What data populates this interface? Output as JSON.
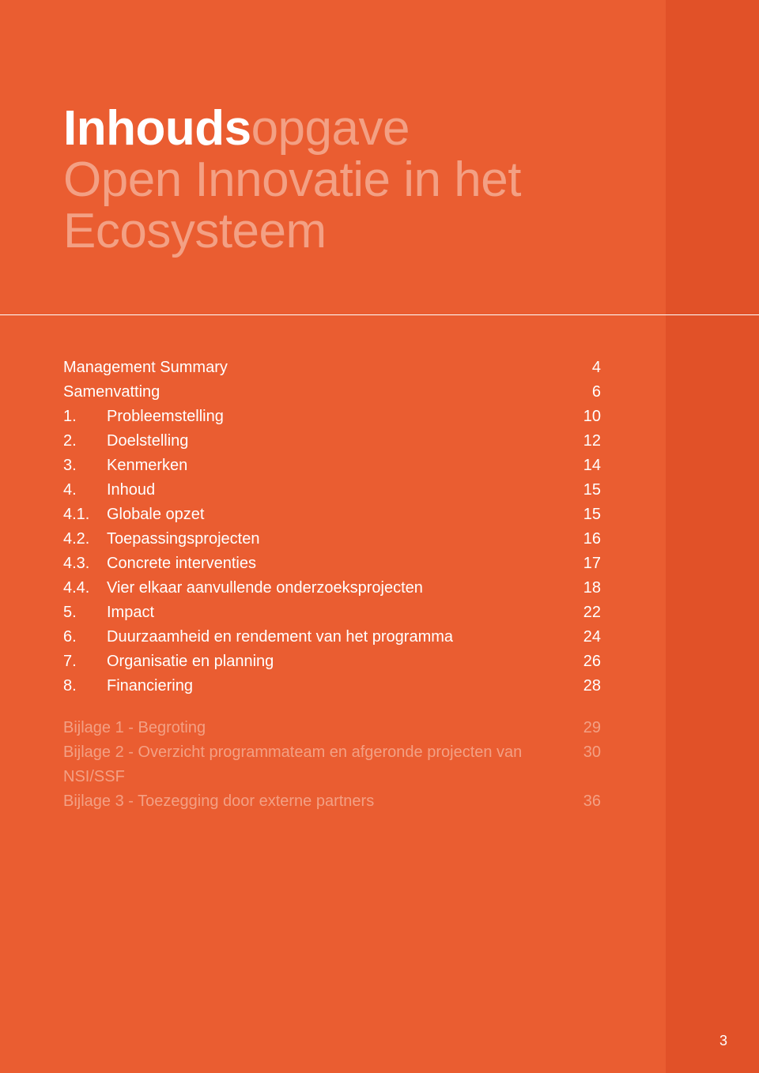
{
  "colors": {
    "page_bg": "#ea5d31",
    "sidebar_bg": "#e15128",
    "rule": "#ffffff",
    "title_bold": "#ffffff",
    "title_light": "#f3a084",
    "toc_main": "#ffffff",
    "toc_appendix": "#f3a084",
    "page_number": "#ffffff"
  },
  "title": {
    "bold": "Inhouds",
    "light": "opgave",
    "subtitle_line1": "Open Innovatie in het",
    "subtitle_line2": "Ecosysteem"
  },
  "toc": {
    "main": [
      {
        "num": "",
        "label": "Management Summary",
        "page": "4"
      },
      {
        "num": "",
        "label": "Samenvatting",
        "page": "6"
      },
      {
        "num": "1.",
        "label": "Probleemstelling",
        "page": "10"
      },
      {
        "num": "2.",
        "label": "Doelstelling",
        "page": "12"
      },
      {
        "num": "3.",
        "label": "Kenmerken",
        "page": "14"
      },
      {
        "num": "4.",
        "label": "Inhoud",
        "page": "15"
      },
      {
        "num": "4.1.",
        "label": "Globale opzet",
        "page": "15"
      },
      {
        "num": "4.2.",
        "label": "Toepassingsprojecten",
        "page": "16"
      },
      {
        "num": "4.3.",
        "label": "Concrete interventies",
        "page": "17"
      },
      {
        "num": "4.4.",
        "label": "Vier elkaar aanvullende onderzoeksprojecten",
        "page": "18"
      },
      {
        "num": "5.",
        "label": "Impact",
        "page": "22"
      },
      {
        "num": "6.",
        "label": "Duurzaamheid en rendement van het programma",
        "page": "24"
      },
      {
        "num": "7.",
        "label": "Organisatie en planning",
        "page": "26"
      },
      {
        "num": "8.",
        "label": "Financiering",
        "page": "28"
      }
    ],
    "appendix": [
      {
        "num": "",
        "label": "Bijlage 1 - Begroting",
        "page": "29"
      },
      {
        "num": "",
        "label": "Bijlage 2 - Overzicht programmateam en afgeronde projecten van NSI/SSF",
        "page": "30"
      },
      {
        "num": "",
        "label": "Bijlage 3 - Toezegging door externe partners",
        "page": "36"
      }
    ]
  },
  "page_number": "3"
}
